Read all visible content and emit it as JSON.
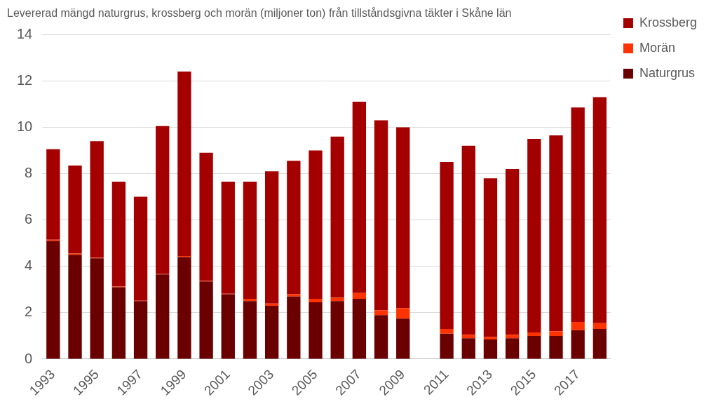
{
  "chart_data": {
    "type": "bar",
    "title": "Levererad mängd naturgrus, krossberg och morän (miljoner ton) från tillståndsgivna täkter i Skåne län",
    "categories": [
      "1993",
      null,
      "1995",
      null,
      "1997",
      null,
      "1999",
      null,
      "2001",
      null,
      "2003",
      null,
      "2005",
      null,
      "2007",
      null,
      "2009",
      null,
      "2011",
      null,
      "2013",
      null,
      "2015",
      null,
      "2017",
      null
    ],
    "series": [
      {
        "name": "Naturgrus",
        "color": "#6B0000",
        "values": [
          5.1,
          4.5,
          4.35,
          3.1,
          2.5,
          3.65,
          4.4,
          3.35,
          2.8,
          2.5,
          2.3,
          2.7,
          2.45,
          2.5,
          2.6,
          1.9,
          1.75,
          null,
          1.1,
          0.9,
          0.85,
          0.9,
          1.0,
          1.0,
          1.25,
          1.3
        ]
      },
      {
        "name": "Morän",
        "color": "#FF3300",
        "values": [
          0.05,
          0.05,
          0.02,
          0.03,
          0.02,
          0.02,
          0.05,
          0.02,
          0.02,
          0.1,
          0.1,
          0.1,
          0.15,
          0.15,
          0.25,
          0.2,
          0.45,
          null,
          0.2,
          0.15,
          0.1,
          0.15,
          0.15,
          0.2,
          0.35,
          0.25
        ]
      },
      {
        "name": "Krossberg",
        "color": "#A50000",
        "values": [
          3.9,
          3.8,
          5.03,
          4.52,
          4.48,
          6.38,
          7.95,
          5.53,
          4.83,
          5.05,
          5.7,
          5.75,
          6.4,
          6.95,
          8.25,
          8.2,
          7.8,
          null,
          7.2,
          8.15,
          6.85,
          7.15,
          8.35,
          8.45,
          9.25,
          9.75
        ]
      }
    ],
    "ylim": [
      0,
      14
    ],
    "yticks": [
      0,
      2,
      4,
      6,
      8,
      10,
      12,
      14
    ],
    "grid": true,
    "stacked": true,
    "legend": "right"
  }
}
